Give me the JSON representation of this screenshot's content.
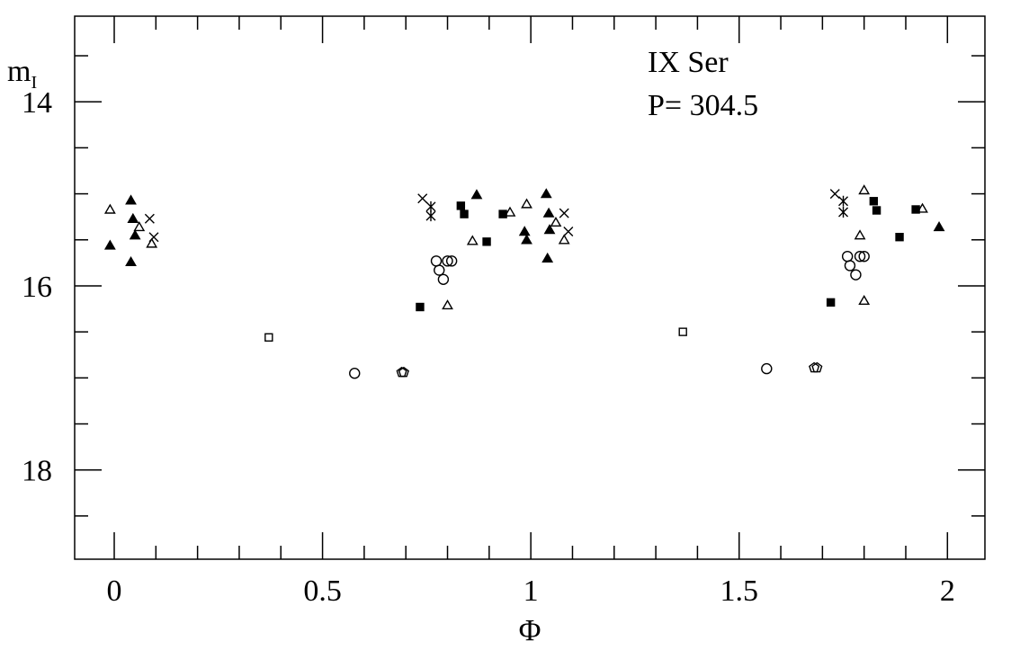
{
  "chart_data": {
    "type": "scatter",
    "xlabel": "Φ",
    "ylabel": "m",
    "ylabel_subscript": "I",
    "annotations": [
      "IX Ser",
      "P= 304.5"
    ],
    "xlim": [
      -0.095,
      2.09
    ],
    "ylim": [
      18.97,
      13.07
    ],
    "xticks": [
      0,
      0.5,
      1,
      1.5,
      2
    ],
    "yticks": [
      14,
      16,
      18
    ],
    "xminorticks": [
      0.1,
      0.2,
      0.3,
      0.4,
      0.6,
      0.7,
      0.8,
      0.9,
      1.1,
      1.2,
      1.3,
      1.4,
      1.6,
      1.7,
      1.8,
      1.9
    ],
    "yminorticks": [
      13.5,
      14.5,
      15,
      15.5,
      16.5,
      17,
      17.5,
      18.5
    ],
    "series": [
      {
        "marker": "filled-triangle",
        "color": "#000",
        "x": [
          -0.01,
          0.04,
          0.045,
          0.05,
          0.04,
          0.87,
          0.985,
          0.99,
          1.037,
          1.043,
          1.045,
          1.04,
          1.98
        ],
        "values": [
          15.57,
          15.08,
          15.28,
          15.46,
          15.75,
          15.02,
          15.42,
          15.51,
          15.01,
          15.22,
          15.4,
          15.71,
          15.37
        ]
      },
      {
        "marker": "open-triangle",
        "color": "#000",
        "x": [
          -0.01,
          0.06,
          0.09,
          0.8,
          0.86,
          0.95,
          0.99,
          1.06,
          1.08,
          1.79,
          1.8,
          1.8,
          1.94
        ],
        "values": [
          15.18,
          15.37,
          15.55,
          16.22,
          15.52,
          15.21,
          15.12,
          15.32,
          15.51,
          15.46,
          16.17,
          14.97,
          15.17
        ]
      },
      {
        "marker": "cross",
        "color": "#000",
        "x": [
          0.085,
          0.095,
          0.74,
          1.08,
          1.09,
          1.73
        ],
        "values": [
          15.27,
          15.47,
          15.05,
          15.21,
          15.41,
          15.0
        ]
      },
      {
        "marker": "asterisk",
        "color": "#000",
        "x": [
          0.76,
          0.76,
          1.75,
          1.75
        ],
        "values": [
          15.14,
          15.24,
          15.08,
          15.2
        ]
      },
      {
        "marker": "open-circle",
        "color": "#000",
        "x": [
          0.577,
          0.773,
          0.78,
          0.79,
          0.8,
          0.81,
          1.566,
          1.76,
          1.766,
          1.78,
          1.79,
          1.8
        ],
        "values": [
          16.95,
          15.73,
          15.83,
          15.93,
          15.73,
          15.73,
          16.9,
          15.68,
          15.78,
          15.88,
          15.68,
          15.68
        ]
      },
      {
        "marker": "filled-square",
        "color": "#000",
        "x": [
          0.734,
          0.832,
          0.84,
          0.894,
          0.933,
          1.72,
          1.823,
          1.83,
          1.885,
          1.924
        ],
        "values": [
          16.23,
          15.13,
          15.22,
          15.52,
          15.22,
          16.18,
          15.08,
          15.18,
          15.47,
          15.17
        ]
      },
      {
        "marker": "open-square",
        "color": "#000",
        "x": [
          0.371,
          1.365
        ],
        "values": [
          16.56,
          16.5
        ]
      },
      {
        "marker": "open-pentagon",
        "color": "#000",
        "x": [
          0.69,
          0.695,
          1.68,
          1.687
        ],
        "values": [
          16.94,
          16.94,
          16.89,
          16.89
        ]
      }
    ]
  }
}
